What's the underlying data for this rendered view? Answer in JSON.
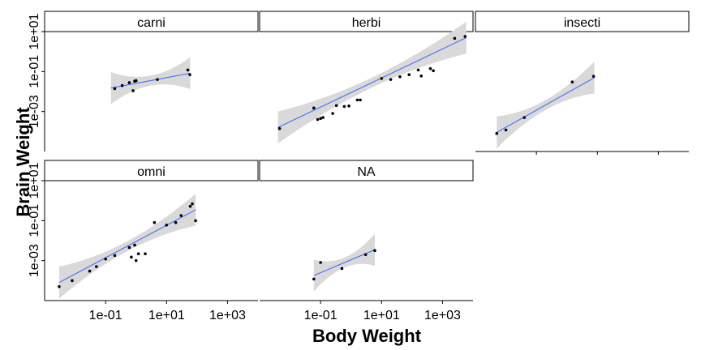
{
  "chart_data": {
    "type": "scatter",
    "xlabel": "Body Weight",
    "ylabel": "Brain Weight",
    "x_scale": "log10",
    "y_scale": "log10",
    "xlim": [
      0.001,
      10000
    ],
    "ylim": [
      1e-05,
      10
    ],
    "x_ticks": [
      {
        "value": 0.1,
        "label": "1e-01"
      },
      {
        "value": 10,
        "label": "1e+01"
      },
      {
        "value": 1000,
        "label": "1e+03"
      }
    ],
    "y_ticks": [
      {
        "value": 0.001,
        "label": "1e-03"
      },
      {
        "value": 0.1,
        "label": "1e-01"
      },
      {
        "value": 10,
        "label": "1e+01"
      }
    ],
    "grid": false,
    "smoother": {
      "method": "linear",
      "color": "#3366ff",
      "ribbon_color": "#d9d9d9"
    },
    "panels": [
      {
        "name": "carni",
        "points": [
          [
            0.2,
            0.014
          ],
          [
            0.35,
            0.02
          ],
          [
            0.6,
            0.028
          ],
          [
            0.9,
            0.033
          ],
          [
            0.8,
            0.011
          ],
          [
            1.0,
            0.035
          ],
          [
            5.0,
            0.04
          ],
          [
            50.0,
            0.12
          ],
          [
            58.0,
            0.07
          ]
        ],
        "fit": {
          "x": [
            0.15,
            60
          ],
          "y": [
            0.015,
            0.083
          ]
        }
      },
      {
        "name": "herbi",
        "points": [
          [
            0.0045,
            0.00014
          ],
          [
            0.06,
            0.0015
          ],
          [
            0.08,
            0.0004
          ],
          [
            0.1,
            0.00045
          ],
          [
            0.12,
            0.0005
          ],
          [
            0.25,
            0.0008
          ],
          [
            0.33,
            0.002
          ],
          [
            0.6,
            0.0018
          ],
          [
            0.85,
            0.0019
          ],
          [
            1.6,
            0.0038
          ],
          [
            2.0,
            0.0038
          ],
          [
            10.0,
            0.045
          ],
          [
            20.0,
            0.04
          ],
          [
            40.0,
            0.055
          ],
          [
            80.0,
            0.07
          ],
          [
            160.0,
            0.12
          ],
          [
            200.0,
            0.06
          ],
          [
            400.0,
            0.14
          ],
          [
            500.0,
            0.11
          ],
          [
            2500.0,
            4.6
          ],
          [
            5500.0,
            5.7
          ]
        ],
        "fit": {
          "x": [
            0.004,
            6000
          ],
          "y": [
            0.00016,
            5.0
          ]
        }
      },
      {
        "name": "insecti",
        "points": [
          [
            0.005,
            8e-05
          ],
          [
            0.01,
            0.00012
          ],
          [
            0.04,
            0.0005
          ],
          [
            1.5,
            0.03
          ],
          [
            7.5,
            0.058
          ]
        ],
        "fit": {
          "x": [
            0.005,
            8
          ],
          "y": [
            9e-05,
            0.05
          ]
        }
      },
      {
        "name": "omni",
        "points": [
          [
            0.003,
            5e-05
          ],
          [
            0.008,
            0.0001
          ],
          [
            0.03,
            0.0003
          ],
          [
            0.05,
            0.0005
          ],
          [
            0.1,
            0.0012
          ],
          [
            0.2,
            0.0018
          ],
          [
            0.6,
            0.0045
          ],
          [
            0.9,
            0.006
          ],
          [
            0.7,
            0.0015
          ],
          [
            1.0,
            0.001
          ],
          [
            1.2,
            0.0022
          ],
          [
            2.0,
            0.0022
          ],
          [
            4.0,
            0.08
          ],
          [
            10.0,
            0.06
          ],
          [
            20.0,
            0.08
          ],
          [
            30.0,
            0.18
          ],
          [
            60.0,
            0.52
          ],
          [
            70.0,
            0.7
          ],
          [
            90.0,
            0.1
          ]
        ],
        "fit": {
          "x": [
            0.003,
            90
          ],
          "y": [
            8e-05,
            0.35
          ]
        }
      },
      {
        "name": "NA",
        "points": [
          [
            0.06,
            0.00012
          ],
          [
            0.1,
            0.0008
          ],
          [
            0.5,
            0.0004
          ],
          [
            3.0,
            0.002
          ],
          [
            6.0,
            0.0032
          ]
        ],
        "fit": {
          "x": [
            0.06,
            6
          ],
          "y": [
            0.00018,
            0.0035
          ]
        }
      }
    ]
  }
}
